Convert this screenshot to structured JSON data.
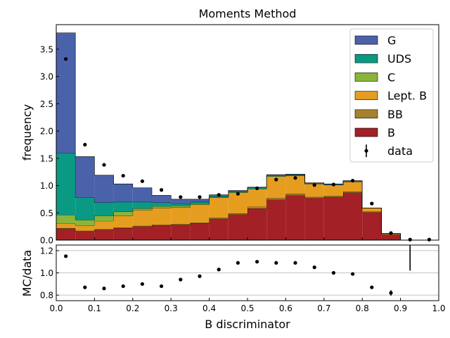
{
  "chart_data": [
    {
      "panel": "main",
      "type": "stacked-step-histogram",
      "title": "Moments Method",
      "xlabel": "",
      "ylabel": "frequency",
      "xlim": [
        0.0,
        1.0
      ],
      "ylim": [
        0.0,
        3.95
      ],
      "yticks": [
        "0.0",
        "0.5",
        "1.0",
        "1.5",
        "2.0",
        "2.5",
        "3.0",
        "3.5"
      ],
      "bin_edges": [
        0.0,
        0.05,
        0.1,
        0.15,
        0.2,
        0.25,
        0.3,
        0.35,
        0.4,
        0.45,
        0.5,
        0.55,
        0.6,
        0.65,
        0.7,
        0.75,
        0.8,
        0.85,
        0.9,
        0.95,
        1.0
      ],
      "legend_position": "top-right",
      "series": [
        {
          "name": "B",
          "color": "#a32126",
          "values": [
            0.21,
            0.16,
            0.19,
            0.22,
            0.25,
            0.27,
            0.28,
            0.31,
            0.39,
            0.47,
            0.58,
            0.74,
            0.82,
            0.77,
            0.79,
            0.87,
            0.51,
            0.1,
            0.0,
            0.0
          ]
        },
        {
          "name": "BB",
          "color": "#a6822e",
          "values": [
            0.01,
            0.01,
            0.01,
            0.01,
            0.01,
            0.01,
            0.01,
            0.01,
            0.02,
            0.02,
            0.03,
            0.03,
            0.03,
            0.02,
            0.02,
            0.02,
            0.01,
            0.01,
            0.0,
            0.0
          ]
        },
        {
          "name": "Lept. B",
          "color": "#e59d20",
          "values": [
            0.08,
            0.1,
            0.15,
            0.22,
            0.29,
            0.31,
            0.31,
            0.33,
            0.37,
            0.38,
            0.33,
            0.4,
            0.33,
            0.24,
            0.2,
            0.18,
            0.07,
            0.01,
            0.0,
            0.0
          ]
        },
        {
          "name": "C",
          "color": "#8ab43a",
          "values": [
            0.16,
            0.1,
            0.1,
            0.07,
            0.03,
            0.03,
            0.03,
            0.02,
            0.01,
            0.01,
            0.0,
            0.0,
            0.0,
            0.0,
            0.0,
            0.0,
            0.0,
            0.0,
            0.0,
            0.0
          ]
        },
        {
          "name": "UDS",
          "color": "#0a9a84",
          "values": [
            1.14,
            0.41,
            0.24,
            0.18,
            0.12,
            0.07,
            0.04,
            0.03,
            0.02,
            0.02,
            0.02,
            0.02,
            0.02,
            0.01,
            0.01,
            0.01,
            0.0,
            0.0,
            0.0,
            0.0
          ]
        },
        {
          "name": "G",
          "color": "#4a62aa",
          "values": [
            2.2,
            0.75,
            0.5,
            0.33,
            0.26,
            0.13,
            0.08,
            0.05,
            0.02,
            0.01,
            0.01,
            0.01,
            0.01,
            0.01,
            0.01,
            0.01,
            0.0,
            0.0,
            0.0,
            0.0
          ]
        }
      ],
      "data_points": {
        "name": "data",
        "color": "#000000",
        "x": [
          0.025,
          0.075,
          0.125,
          0.175,
          0.225,
          0.275,
          0.325,
          0.375,
          0.425,
          0.475,
          0.525,
          0.575,
          0.625,
          0.675,
          0.725,
          0.775,
          0.825,
          0.875,
          0.925,
          0.975
        ],
        "y": [
          3.32,
          1.75,
          1.38,
          1.18,
          1.08,
          0.92,
          0.79,
          0.79,
          0.83,
          0.85,
          0.95,
          1.11,
          1.14,
          1.01,
          1.02,
          1.09,
          0.67,
          0.13,
          0.01,
          0.01
        ]
      }
    },
    {
      "panel": "ratio",
      "type": "scatter",
      "xlabel": "B discriminator",
      "ylabel": "MC/data",
      "xlim": [
        0.0,
        1.0
      ],
      "ylim": [
        0.75,
        1.25
      ],
      "xticks": [
        "0.0",
        "0.1",
        "0.2",
        "0.3",
        "0.4",
        "0.5",
        "0.6",
        "0.7",
        "0.8",
        "0.9",
        "1.0"
      ],
      "yticks": [
        "0.8",
        "1.0",
        "1.2"
      ],
      "grid": "horizontal",
      "x": [
        0.025,
        0.075,
        0.125,
        0.175,
        0.225,
        0.275,
        0.325,
        0.375,
        0.425,
        0.475,
        0.525,
        0.575,
        0.625,
        0.675,
        0.725,
        0.775,
        0.825,
        0.875
      ],
      "y": [
        1.15,
        0.87,
        0.86,
        0.88,
        0.9,
        0.88,
        0.94,
        0.97,
        1.03,
        1.09,
        1.1,
        1.09,
        1.09,
        1.05,
        1.0,
        0.99,
        0.87,
        0.82
      ],
      "yerr": [
        0.005,
        0.005,
        0.005,
        0.005,
        0.005,
        0.005,
        0.01,
        0.01,
        0.01,
        0.01,
        0.01,
        0.01,
        0.01,
        0.01,
        0.01,
        0.01,
        0.015,
        0.025
      ],
      "error_bar_only": {
        "x": 0.925,
        "y_range": [
          1.02,
          1.25
        ]
      }
    }
  ]
}
